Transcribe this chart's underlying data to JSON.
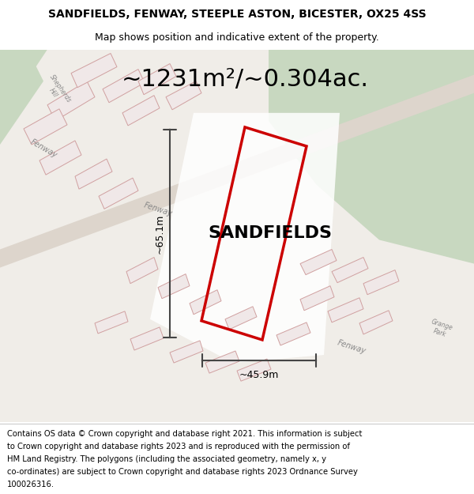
{
  "title_line1": "SANDFIELDS, FENWAY, STEEPLE ASTON, BICESTER, OX25 4SS",
  "title_line2": "Map shows position and indicative extent of the property.",
  "area_label": "~1231m²/~0.304ac.",
  "property_label": "SANDFIELDS",
  "dim_vertical": "~65.1m",
  "dim_horizontal": "~45.9m",
  "footer_lines": [
    "Contains OS data © Crown copyright and database right 2021. This information is subject",
    "to Crown copyright and database rights 2023 and is reproduced with the permission of",
    "HM Land Registry. The polygons (including the associated geometry, namely x, y",
    "co-ordinates) are subject to Crown copyright and database rights 2023 Ordnance Survey",
    "100026316."
  ],
  "bg_map_color": "#f0ede8",
  "road_color": "#e8c8c8",
  "green_color": "#c8d8c0",
  "highlight_color": "#ffffff",
  "property_outline_color": "#cc0000",
  "dim_line_color": "#444444",
  "title_fontsize": 10,
  "subtitle_fontsize": 9,
  "area_fontsize": 22,
  "label_fontsize": 16,
  "footer_fontsize": 7.2
}
